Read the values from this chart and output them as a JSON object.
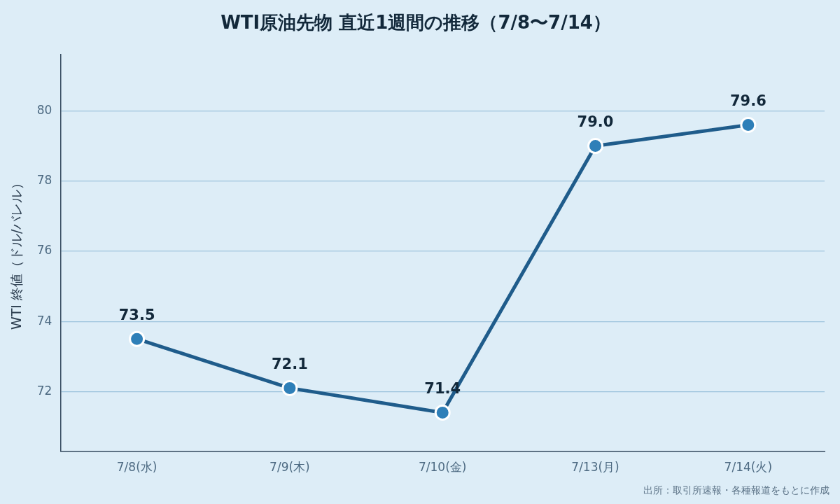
{
  "chart_data": {
    "type": "line",
    "title": "WTI原油先物 直近1週間の推移（7/8〜7/14）",
    "ylabel": "WTI 終値（ドル/バレル）",
    "categories": [
      "7/8(水)",
      "7/9(木)",
      "7/10(金)",
      "7/13(月)",
      "7/14(火)"
    ],
    "series": [
      {
        "color": "#1f5c8b",
        "values": [
          73.5,
          72.1,
          71.4,
          79.0,
          79.6
        ],
        "value_labels": [
          "73.5",
          "72.1",
          "71.4",
          "79.0",
          "79.6"
        ]
      }
    ],
    "ylim": [
      70.3,
      81.6
    ],
    "yticks": [
      72,
      74,
      76,
      78,
      80
    ],
    "grid": "y",
    "legend": false,
    "marker": "circle",
    "line_style": "solid",
    "annotations": [
      "出所：取引所速報・各種報道をもとに作成"
    ]
  }
}
